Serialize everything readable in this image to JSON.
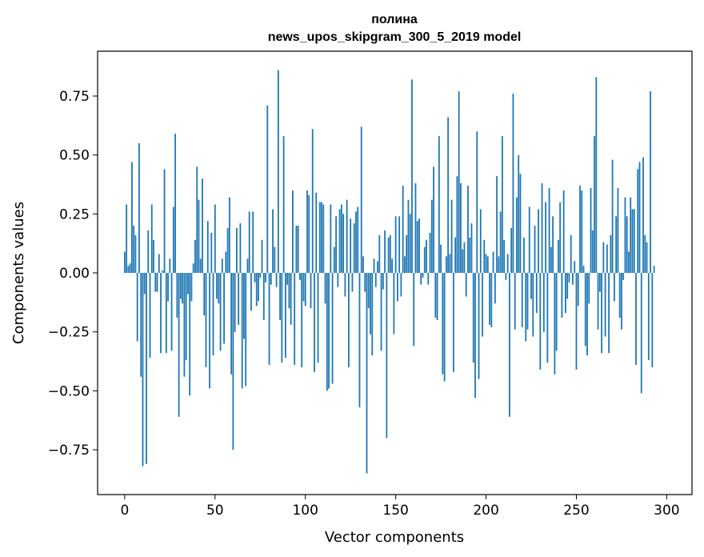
{
  "chart_data": {
    "type": "bar",
    "title": "полина",
    "subtitle": "news_upos_skipgram_300_5_2019 model",
    "xlabel": "Vector components",
    "ylabel": "Components values",
    "xlim": [
      -15,
      314
    ],
    "ylim": [
      -0.94,
      0.94
    ],
    "xticks": [
      {
        "value": 0,
        "label": "0"
      },
      {
        "value": 50,
        "label": "50"
      },
      {
        "value": 100,
        "label": "100"
      },
      {
        "value": 150,
        "label": "150"
      },
      {
        "value": 200,
        "label": "200"
      },
      {
        "value": 250,
        "label": "250"
      },
      {
        "value": 300,
        "label": "300"
      }
    ],
    "yticks": [
      {
        "value": -0.75,
        "label": "−0.75"
      },
      {
        "value": -0.5,
        "label": "−0.50"
      },
      {
        "value": -0.25,
        "label": "−0.25"
      },
      {
        "value": 0,
        "label": "0.00"
      },
      {
        "value": 0.25,
        "label": "0.25"
      },
      {
        "value": 0.5,
        "label": "0.50"
      },
      {
        "value": 0.75,
        "label": "0.75"
      }
    ],
    "grid": false,
    "bar_color": "#1f77b4",
    "values": [
      0.09,
      0.29,
      0.03,
      0.04,
      0.47,
      0.2,
      0.16,
      -0.29,
      0.55,
      -0.44,
      -0.82,
      -0.09,
      -0.81,
      0.18,
      -0.36,
      0.29,
      0.14,
      -0.08,
      -0.08,
      0.08,
      -0.34,
      0.01,
      0.44,
      -0.34,
      -0.12,
      0.06,
      -0.33,
      0.28,
      0.59,
      -0.19,
      -0.61,
      -0.11,
      -0.13,
      -0.44,
      -0.37,
      -0.09,
      -0.52,
      -0.12,
      0.04,
      0.14,
      0.45,
      0.31,
      0.06,
      0.4,
      -0.18,
      -0.4,
      0.22,
      -0.49,
      0.17,
      -0.35,
      0.29,
      -0.11,
      -0.13,
      -0.33,
      0.06,
      -0.3,
      0.09,
      0.19,
      0.32,
      -0.43,
      -0.75,
      -0.25,
      0.19,
      -0.22,
      0.21,
      -0.49,
      -0.28,
      -0.48,
      0.06,
      0.26,
      -0.16,
      0.26,
      -0.04,
      -0.14,
      -0.12,
      -0.02,
      0.14,
      -0.2,
      -0.04,
      0.71,
      -0.39,
      -0.05,
      0.27,
      0.11,
      -0.06,
      0.86,
      -0.2,
      -0.38,
      0.58,
      -0.36,
      -0.05,
      -0.15,
      -0.22,
      0.35,
      -0.39,
      0.2,
      0.2,
      -0.03,
      -0.4,
      -0.12,
      -0.14,
      0.35,
      0.33,
      -0.15,
      0.61,
      -0.42,
      0.34,
      -0.38,
      0.3,
      0.3,
      0.29,
      -0.13,
      -0.5,
      -0.49,
      0.29,
      -0.47,
      0.11,
      0.24,
      -0.06,
      0.27,
      0.29,
      0.25,
      -0.1,
      0.31,
      -0.4,
      0.23,
      -0.08,
      0.21,
      0.26,
      0.28,
      -0.57,
      0.62,
      0.07,
      -0.08,
      -0.85,
      -0.15,
      -0.26,
      -0.35,
      0.06,
      -0.06,
      0.05,
      0.16,
      -0.33,
      -0.07,
      0.18,
      -0.7,
      0.15,
      0.16,
      0.06,
      -0.26,
      0.24,
      -0.12,
      0.24,
      -0.1,
      0.37,
      0.07,
      0.16,
      0.31,
      0.25,
      0.82,
      -0.31,
      0.38,
      0.22,
      0.23,
      -0.05,
      -0.02,
      0.11,
      0.14,
      -0.05,
      0.17,
      0.31,
      0.45,
      -0.19,
      -0.2,
      0.58,
      0.12,
      -0.43,
      -0.46,
      0.07,
      0.66,
      0.08,
      0.31,
      -0.42,
      0.15,
      0.41,
      0.77,
      0.38,
      0.1,
      0.13,
      -0.1,
      0.37,
      0.15,
      0.21,
      -0.38,
      -0.53,
      0.6,
      -0.45,
      0.27,
      -0.27,
      0.14,
      0.08,
      0.07,
      -0.22,
      -0.23,
      0.09,
      -0.13,
      0.41,
      0.07,
      0.26,
      0.58,
      0.14,
      -0.03,
      0.08,
      -0.61,
      0.19,
      0.76,
      -0.24,
      0.32,
      0.5,
      0.42,
      -0.23,
      0.15,
      -0.29,
      -0.24,
      0.28,
      -0.11,
      -0.27,
      0.2,
      -0.17,
      0.27,
      -0.41,
      0.38,
      -0.25,
      0.3,
      -0.38,
      0.36,
      0.11,
      0.24,
      -0.43,
      -0.33,
      0.14,
      0.3,
      -0.19,
      0.35,
      -0.17,
      -0.11,
      -0.04,
      0.16,
      -0.05,
      0.05,
      -0.41,
      -0.14,
      0.37,
      0.35,
      0.03,
      -0.31,
      -0.35,
      -0.13,
      0.36,
      0.18,
      0.58,
      0.83,
      -0.24,
      -0.08,
      -0.34,
      0.13,
      -0.27,
      0.12,
      -0.34,
      0.16,
      0.48,
      -0.12,
      0.24,
      0.36,
      -0.19,
      -0.24,
      -0.03,
      0.32,
      0.24,
      0.09,
      0.32,
      0.27,
      0.27,
      -0.39,
      0.44,
      0.47,
      -0.51,
      0.49,
      0.16,
      0.13,
      -0.37,
      0.77,
      -0.4,
      0.03
    ]
  }
}
